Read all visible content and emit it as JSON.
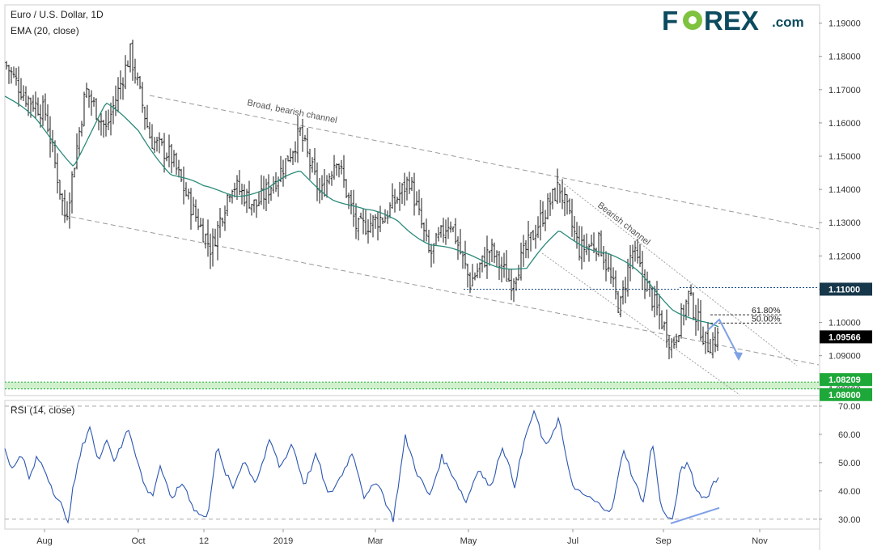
{
  "header": {
    "symbol_title": "Euro / U.S. Dollar, 1D",
    "ema_label": "EMA (20, close)",
    "rsi_label": "RSI (14, close)"
  },
  "logo": {
    "part1": "F",
    "part2": "REX",
    "suffix": ".com",
    "color_dark": "#0c4a5e",
    "color_accent": "#7ec23f"
  },
  "colors": {
    "candle": "#1a1a1a",
    "ema": "#2a8a7a",
    "rsi": "#2b56b0",
    "channel": "#9a9a9a",
    "support_zone": "#c9efc4",
    "support_line": "#1fa83a",
    "resistance_line": "#1c4f8a",
    "tag_dark": "#17374a",
    "tag_black": "#000000",
    "tag_green": "#1fa83a",
    "arrow": "#7ea0e6"
  },
  "chart_data": [
    {
      "type": "candlestick",
      "series": [
        {
          "name": "Euro / U.S. Dollar, 1D",
          "kind": "ohlc"
        },
        {
          "name": "EMA (20, close)",
          "kind": "line"
        }
      ],
      "x_ticks": [
        "Aug",
        "Oct",
        "12",
        "2019",
        "Mar",
        "May",
        "Jul",
        "Sep",
        "Nov"
      ],
      "y_ticks": [
        "1.19000",
        "1.18000",
        "1.17000",
        "1.16000",
        "1.15000",
        "1.14000",
        "1.13000",
        "1.12000",
        "1.11000",
        "1.10000",
        "1.09000",
        "1.08000"
      ],
      "ylim": [
        1.078,
        1.1955
      ],
      "price_tags": [
        {
          "value": 1.11,
          "label": "1.11000",
          "style": "tag_dark"
        },
        {
          "value": 1.09566,
          "label": "1.09566",
          "style": "tag_black"
        },
        {
          "value": 1.08209,
          "label": "1.08209",
          "style": "tag_green"
        },
        {
          "value": 1.08,
          "label": "1.08000",
          "style": "tag_green"
        }
      ],
      "support_zone": [
        1.08,
        1.08209
      ],
      "resistance_level": 1.11,
      "fib_levels": [
        {
          "label": "61.80%",
          "value": 1.1023
        },
        {
          "label": "50.00%",
          "value": 1.0998
        }
      ],
      "annotations": [
        "Broad, bearish channel",
        "Bearish channel"
      ],
      "last_close": 1.09566,
      "ema_path": [
        [
          0,
          1.168
        ],
        [
          40,
          1.16
        ],
        [
          85,
          1.148
        ],
        [
          125,
          1.165
        ],
        [
          165,
          1.158
        ],
        [
          205,
          1.145
        ],
        [
          245,
          1.14
        ],
        [
          285,
          1.139
        ],
        [
          325,
          1.14
        ],
        [
          365,
          1.145
        ],
        [
          405,
          1.138
        ],
        [
          445,
          1.133
        ],
        [
          485,
          1.131
        ],
        [
          525,
          1.124
        ],
        [
          565,
          1.12
        ],
        [
          605,
          1.118
        ],
        [
          645,
          1.116
        ],
        [
          685,
          1.127
        ],
        [
          705,
          1.125
        ],
        [
          745,
          1.121
        ],
        [
          785,
          1.114
        ],
        [
          825,
          1.105
        ],
        [
          860,
          1.1
        ],
        [
          882,
          1.0975
        ]
      ],
      "price_path": [
        [
          0,
          1.178
        ],
        [
          25,
          1.168
        ],
        [
          50,
          1.163
        ],
        [
          75,
          1.131
        ],
        [
          100,
          1.17
        ],
        [
          125,
          1.158
        ],
        [
          155,
          1.181
        ],
        [
          180,
          1.155
        ],
        [
          205,
          1.15
        ],
        [
          230,
          1.135
        ],
        [
          255,
          1.122
        ],
        [
          280,
          1.142
        ],
        [
          310,
          1.135
        ],
        [
          340,
          1.145
        ],
        [
          365,
          1.157
        ],
        [
          390,
          1.138
        ],
        [
          410,
          1.15
        ],
        [
          435,
          1.128
        ],
        [
          470,
          1.132
        ],
        [
          500,
          1.143
        ],
        [
          525,
          1.12
        ],
        [
          550,
          1.131
        ],
        [
          575,
          1.112
        ],
        [
          600,
          1.122
        ],
        [
          625,
          1.112
        ],
        [
          660,
          1.13
        ],
        [
          685,
          1.141
        ],
        [
          710,
          1.122
        ],
        [
          735,
          1.124
        ],
        [
          760,
          1.104
        ],
        [
          775,
          1.122
        ],
        [
          800,
          1.107
        ],
        [
          825,
          1.093
        ],
        [
          845,
          1.108
        ],
        [
          868,
          1.093
        ],
        [
          882,
          1.0957
        ]
      ]
    },
    {
      "type": "line",
      "series": [
        {
          "name": "RSI (14, close)"
        }
      ],
      "y_ticks": [
        "70.00",
        "60.00",
        "50.00",
        "40.00",
        "30.00"
      ],
      "ylim": [
        26.5,
        72
      ],
      "hlines": [
        70,
        30
      ],
      "rsi_path": [
        [
          0,
          55
        ],
        [
          10,
          47
        ],
        [
          20,
          54
        ],
        [
          30,
          44
        ],
        [
          40,
          52
        ],
        [
          50,
          47
        ],
        [
          60,
          40
        ],
        [
          70,
          35
        ],
        [
          77,
          28
        ],
        [
          85,
          42
        ],
        [
          95,
          55
        ],
        [
          105,
          63
        ],
        [
          115,
          50
        ],
        [
          125,
          59
        ],
        [
          135,
          51
        ],
        [
          145,
          56
        ],
        [
          152,
          63
        ],
        [
          160,
          55
        ],
        [
          172,
          42
        ],
        [
          182,
          38
        ],
        [
          192,
          49
        ],
        [
          205,
          37
        ],
        [
          220,
          43
        ],
        [
          235,
          33
        ],
        [
          250,
          30
        ],
        [
          262,
          56
        ],
        [
          270,
          48
        ],
        [
          282,
          41
        ],
        [
          295,
          51
        ],
        [
          310,
          43
        ],
        [
          328,
          58
        ],
        [
          340,
          48
        ],
        [
          355,
          57
        ],
        [
          370,
          42
        ],
        [
          385,
          53
        ],
        [
          400,
          38
        ],
        [
          415,
          45
        ],
        [
          430,
          54
        ],
        [
          445,
          37
        ],
        [
          460,
          44
        ],
        [
          475,
          33
        ],
        [
          480,
          30
        ],
        [
          495,
          59
        ],
        [
          510,
          46
        ],
        [
          525,
          38
        ],
        [
          540,
          52
        ],
        [
          555,
          45
        ],
        [
          570,
          36
        ],
        [
          585,
          48
        ],
        [
          600,
          41
        ],
        [
          615,
          56
        ],
        [
          630,
          42
        ],
        [
          645,
          61
        ],
        [
          655,
          68
        ],
        [
          668,
          55
        ],
        [
          685,
          66
        ],
        [
          695,
          49
        ],
        [
          705,
          40
        ],
        [
          720,
          38
        ],
        [
          735,
          35
        ],
        [
          750,
          33
        ],
        [
          765,
          55
        ],
        [
          778,
          43
        ],
        [
          790,
          36
        ],
        [
          800,
          58
        ],
        [
          812,
          33
        ],
        [
          825,
          29
        ],
        [
          835,
          47
        ],
        [
          845,
          50
        ],
        [
          855,
          40
        ],
        [
          868,
          37
        ],
        [
          876,
          44
        ],
        [
          882,
          44
        ]
      ],
      "divergence_line": [
        [
          823,
          28.5
        ],
        [
          883,
          34
        ]
      ]
    }
  ]
}
